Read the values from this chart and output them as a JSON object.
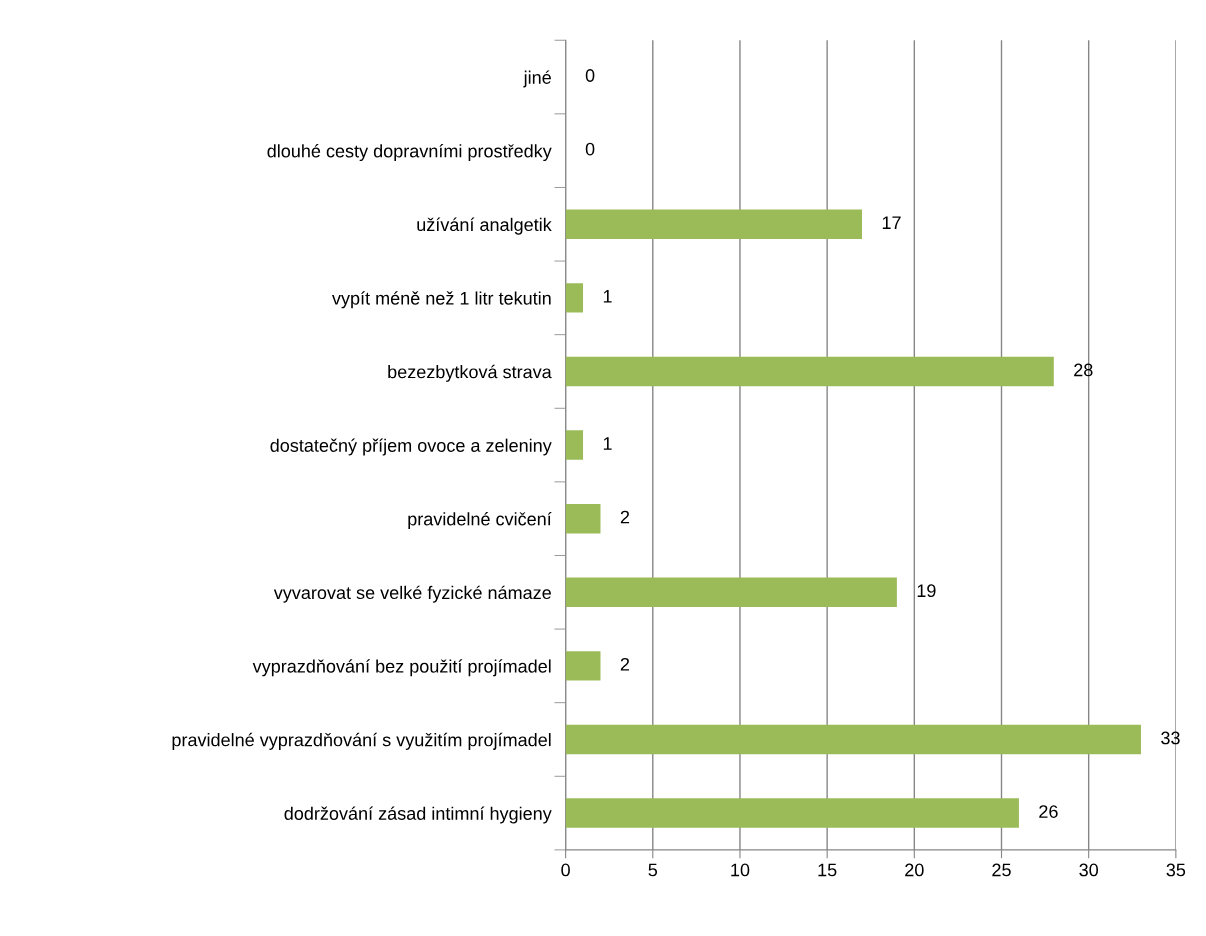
{
  "chart_data": {
    "type": "bar",
    "orientation": "horizontal",
    "categories": [
      "jiné",
      "dlouhé cesty dopravními prostředky",
      "užívání analgetik",
      "vypít méně než 1 litr tekutin",
      "bezezbytková strava",
      "dostatečný příjem ovoce a zeleniny",
      "pravidelné cvičení",
      "vyvarovat se velké fyzické námaze",
      "vyprazdňování bez použití projímadel",
      "pravidelné vyprazdňování s využitím projímadel",
      "dodržování zásad intimní hygieny"
    ],
    "values": [
      0,
      0,
      17,
      1,
      28,
      1,
      2,
      19,
      2,
      33,
      26
    ],
    "color": "#9bbb59",
    "xlim": [
      0,
      35
    ],
    "xticks": [
      0,
      5,
      10,
      15,
      20,
      25,
      30,
      35
    ],
    "grid": "x",
    "data_labels": true
  }
}
